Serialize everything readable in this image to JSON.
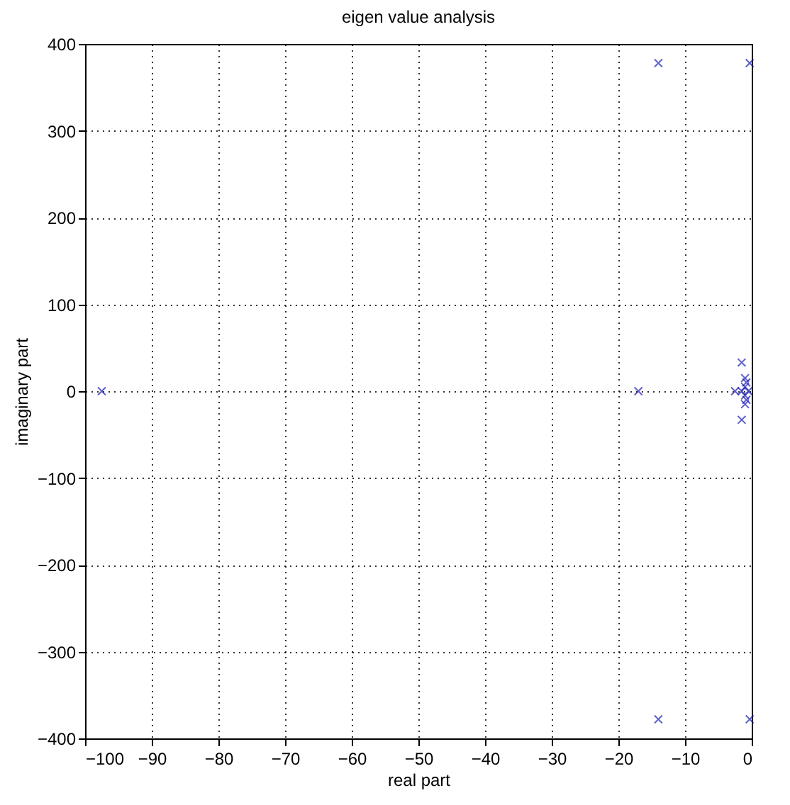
{
  "chart_data": {
    "type": "scatter",
    "title": "eigen value analysis",
    "xlabel": "real part",
    "ylabel": "imaginary part",
    "series": [
      {
        "color": "#1c1cb4",
        "x": [
          -97.5,
          -17,
          -14,
          -14,
          -0.3,
          -0.3,
          -2.5,
          -1.5,
          -1.5,
          -1,
          -1,
          -1,
          -1,
          -0.5,
          -1.5,
          -0.8,
          -0.8
        ],
        "values": [
          0,
          0,
          378,
          -378,
          378,
          -378,
          0,
          33,
          -33,
          15,
          -15,
          5,
          -5,
          0,
          0,
          10,
          -10
        ]
      }
    ],
    "xlim": [
      -100,
      0
    ],
    "xticks": [
      -100,
      -90,
      -80,
      -70,
      -60,
      -50,
      -40,
      -30,
      -20,
      -10,
      0
    ],
    "ylim": [
      -400,
      400
    ],
    "yticks": [
      -400,
      -300,
      -200,
      -100,
      0,
      100,
      200,
      300,
      400
    ],
    "grid": true,
    "marker": "cross"
  }
}
